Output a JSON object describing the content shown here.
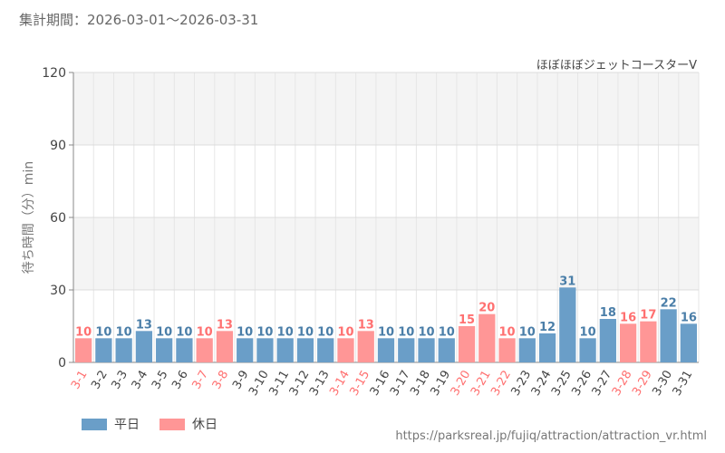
{
  "header": {
    "period": "集計期間：2026-03-01〜2026-03-31",
    "attraction": "ほぼほぼジェットコースターV"
  },
  "footer": {
    "source": "https://parksreal.jp/fujiq/attraction/attraction_vr.html"
  },
  "legend": {
    "weekday": "平日",
    "holiday": "休日"
  },
  "colors": {
    "weekday": "#6a9ec8",
    "holiday": "#ff9696",
    "weekday_label": "#4a7ea8",
    "holiday_label": "#ff7070"
  },
  "chart_data": {
    "type": "bar",
    "ylabel": "待ち時間（分）min",
    "ylim": [
      0,
      120
    ],
    "yticks": [
      0,
      30,
      60,
      90,
      120
    ],
    "grid": true,
    "categories": [
      "3-1",
      "3-2",
      "3-3",
      "3-4",
      "3-5",
      "3-6",
      "3-7",
      "3-8",
      "3-9",
      "3-10",
      "3-11",
      "3-12",
      "3-13",
      "3-14",
      "3-15",
      "3-16",
      "3-17",
      "3-18",
      "3-19",
      "3-20",
      "3-21",
      "3-22",
      "3-23",
      "3-24",
      "3-25",
      "3-26",
      "3-27",
      "3-28",
      "3-29",
      "3-30",
      "3-31"
    ],
    "values": [
      10,
      10,
      10,
      13,
      10,
      10,
      10,
      13,
      10,
      10,
      10,
      10,
      10,
      10,
      13,
      10,
      10,
      10,
      10,
      15,
      20,
      10,
      10,
      12,
      31,
      10,
      18,
      16,
      17,
      22,
      16
    ],
    "holiday": [
      true,
      false,
      false,
      false,
      false,
      false,
      true,
      true,
      false,
      false,
      false,
      false,
      false,
      true,
      true,
      false,
      false,
      false,
      false,
      true,
      true,
      true,
      false,
      false,
      false,
      false,
      false,
      true,
      true,
      false,
      false
    ],
    "series": [
      {
        "name": "平日",
        "color": "#6a9ec8"
      },
      {
        "name": "休日",
        "color": "#ff9696"
      }
    ]
  }
}
